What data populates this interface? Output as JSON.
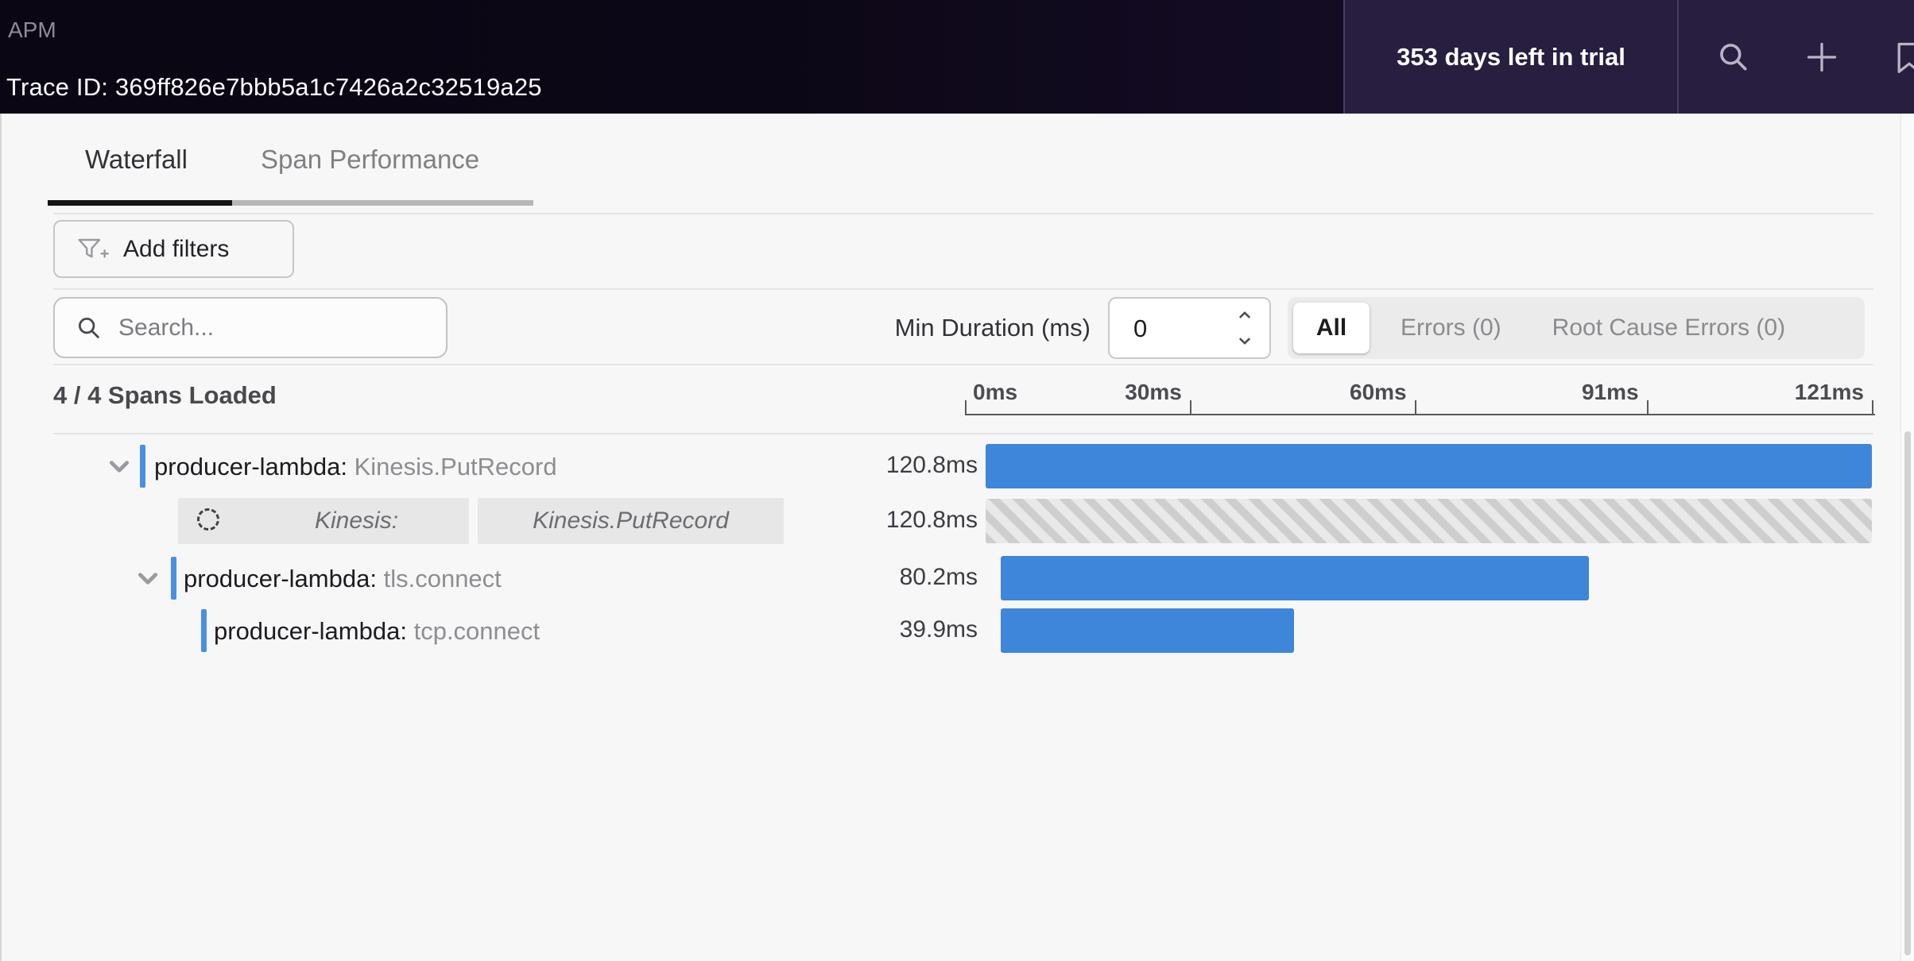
{
  "header": {
    "app_label": "APM",
    "trace_id": "Trace ID: 369ff826e7bbb5a1c7426a2c32519a25",
    "trial_text": "353 days left in trial",
    "icons": [
      "search-icon",
      "plus-icon",
      "bookmark-icon"
    ]
  },
  "tabs": {
    "waterfall": "Waterfall",
    "span_performance": "Span Performance"
  },
  "toolbar": {
    "add_filters_label": "Add filters"
  },
  "controls": {
    "search_placeholder": "Search...",
    "min_duration_label": "Min Duration (ms)",
    "min_duration_value": "0",
    "segments": {
      "all": "All",
      "errors": "Errors (0)",
      "root_cause": "Root Cause Errors (0)"
    }
  },
  "summary": {
    "spans_loaded": "4 / 4 Spans Loaded"
  },
  "chart_data": {
    "type": "waterfall",
    "unit": "ms",
    "axis_range_ms": [
      0,
      121
    ],
    "axis_ticks": [
      {
        "label": "0ms",
        "pct": 0
      },
      {
        "label": "30ms",
        "pct": 24.7
      },
      {
        "label": "60ms",
        "pct": 49.4
      },
      {
        "label": "91ms",
        "pct": 74.9
      },
      {
        "label": "121ms",
        "pct": 99.65
      }
    ],
    "spans": [
      {
        "kind": "span",
        "service": "producer-lambda:",
        "resource": "Kinesis.PutRecord",
        "duration": "120.8ms",
        "duration_ms": 120.8,
        "depth": 0,
        "expanded": true,
        "bar": {
          "left_pct": 2.27,
          "width_pct": 97.38,
          "style": "solid"
        }
      },
      {
        "kind": "placeholder",
        "pill_left": "Kinesis:",
        "pill_right": "Kinesis.PutRecord",
        "duration": "120.8ms",
        "duration_ms": 120.8,
        "depth": 1,
        "bar": {
          "left_pct": 2.27,
          "width_pct": 97.38,
          "style": "hatched"
        }
      },
      {
        "kind": "span",
        "service": "producer-lambda:",
        "resource": "tls.connect",
        "duration": "80.2ms",
        "duration_ms": 80.2,
        "depth": 1,
        "expanded": true,
        "bar": {
          "left_pct": 3.93,
          "width_pct": 64.63,
          "style": "solid"
        }
      },
      {
        "kind": "span",
        "service": "producer-lambda:",
        "resource": "tcp.connect",
        "duration": "39.9ms",
        "duration_ms": 39.9,
        "depth": 2,
        "bar": {
          "left_pct": 3.93,
          "width_pct": 32.23,
          "style": "solid"
        }
      }
    ],
    "colors": {
      "bar_blue": "#3e86d9",
      "indicator_blue": "#4a90e2",
      "hatched_gray": "#cecece",
      "header_purple": "#281e3f"
    }
  }
}
